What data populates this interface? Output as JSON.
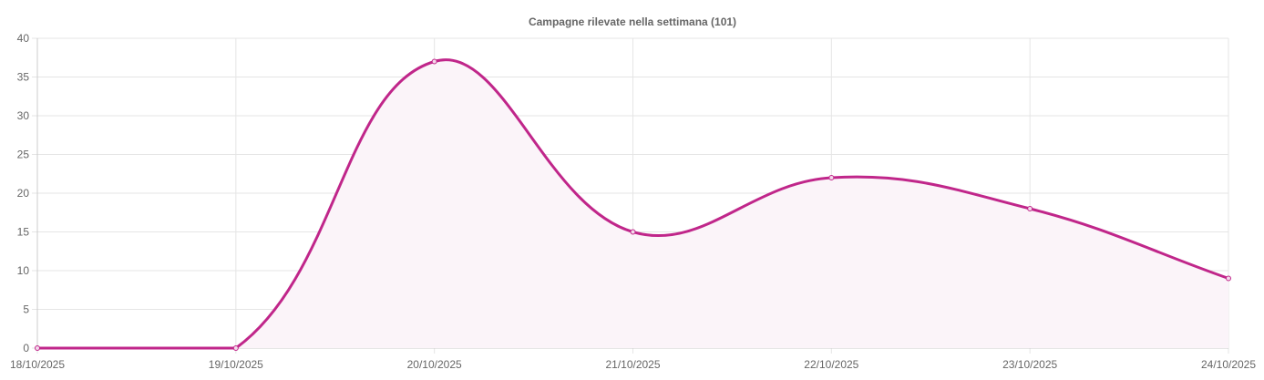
{
  "chart_data": {
    "type": "line",
    "title": "Campagne rilevate nella settimana (101)",
    "categories": [
      "18/10/2025",
      "19/10/2025",
      "20/10/2025",
      "21/10/2025",
      "22/10/2025",
      "23/10/2025",
      "24/10/2025"
    ],
    "series": [
      {
        "values": [
          0,
          0,
          37,
          15,
          22,
          18,
          9
        ]
      }
    ],
    "ylim": [
      0,
      40
    ],
    "yticks": [
      "0",
      "5",
      "10",
      "15",
      "20",
      "25",
      "30",
      "35",
      "40"
    ],
    "grid": true,
    "filled": true,
    "smooth": true,
    "colors": {
      "line": "#c0268a",
      "fill": "#fbf4f9",
      "grid": "#e5e5e5"
    }
  }
}
